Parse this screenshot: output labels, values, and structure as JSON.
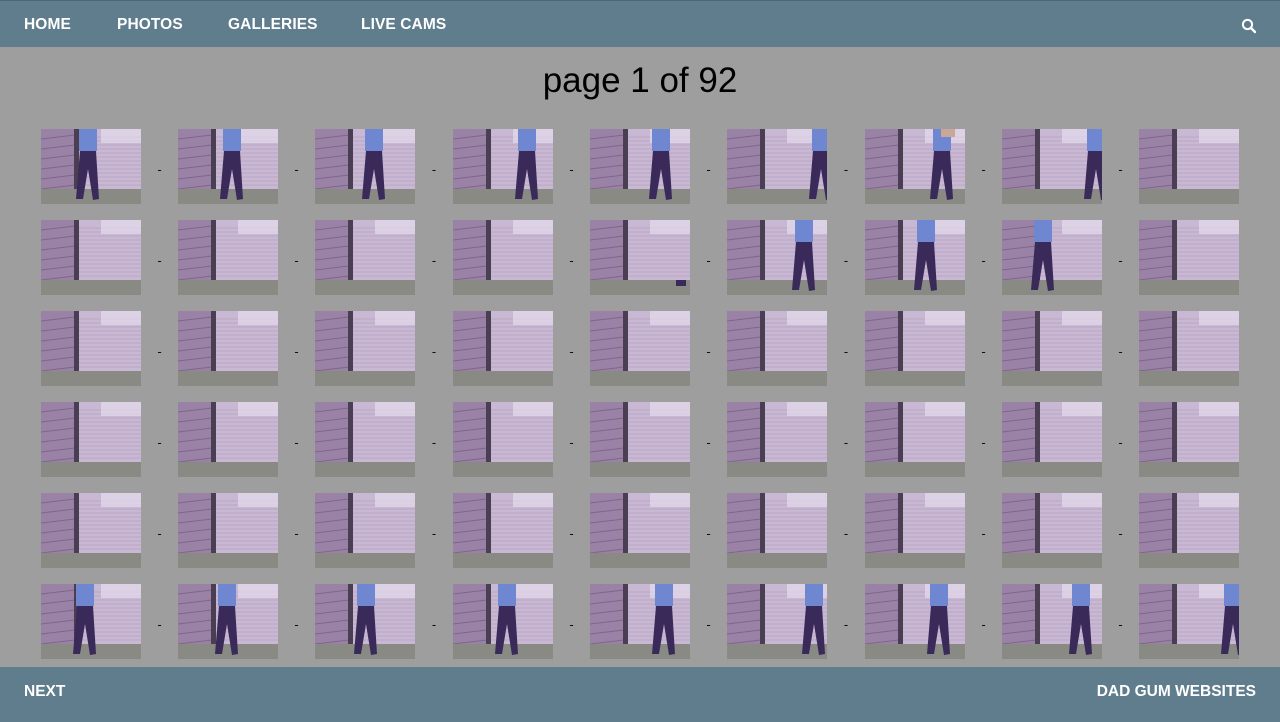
{
  "nav": {
    "items": [
      {
        "label": "HOME",
        "name": "nav-home"
      },
      {
        "label": "PHOTOS",
        "name": "nav-photos"
      },
      {
        "label": "GALLERIES",
        "name": "nav-galleries"
      },
      {
        "label": "LIVE CAMS",
        "name": "nav-live-cams"
      }
    ],
    "search_icon": "search-icon"
  },
  "page_title": "page 1 of 92",
  "gallery": {
    "separator": "-",
    "rows": [
      [
        {
          "person": "walk",
          "pos": 0.48
        },
        {
          "person": "walk",
          "pos": 0.55
        },
        {
          "person": "walk",
          "pos": 0.6
        },
        {
          "person": "walk",
          "pos": 0.75
        },
        {
          "person": "walk",
          "pos": 0.72
        },
        {
          "person": "walk",
          "pos": 0.95
        },
        {
          "person": "arm",
          "pos": 0.78
        },
        {
          "person": "walk",
          "pos": 0.95
        },
        {
          "person": "none",
          "pos": 0
        }
      ],
      [
        {
          "person": "none",
          "pos": 0
        },
        {
          "person": "none",
          "pos": 0
        },
        {
          "person": "none",
          "pos": 0
        },
        {
          "person": "none",
          "pos": 0
        },
        {
          "person": "foot",
          "pos": 0.92
        },
        {
          "person": "walk",
          "pos": 0.78
        },
        {
          "person": "walk",
          "pos": 0.62
        },
        {
          "person": "walk",
          "pos": 0.42
        },
        {
          "person": "none",
          "pos": 0
        }
      ],
      [
        {
          "person": "none",
          "pos": 0
        },
        {
          "person": "none",
          "pos": 0
        },
        {
          "person": "none",
          "pos": 0
        },
        {
          "person": "none",
          "pos": 0
        },
        {
          "person": "none",
          "pos": 0
        },
        {
          "person": "none",
          "pos": 0
        },
        {
          "person": "none",
          "pos": 0
        },
        {
          "person": "none",
          "pos": 0
        },
        {
          "person": "none",
          "pos": 0
        }
      ],
      [
        {
          "person": "none",
          "pos": 0
        },
        {
          "person": "none",
          "pos": 0
        },
        {
          "person": "none",
          "pos": 0
        },
        {
          "person": "none",
          "pos": 0
        },
        {
          "person": "none",
          "pos": 0
        },
        {
          "person": "none",
          "pos": 0
        },
        {
          "person": "none",
          "pos": 0
        },
        {
          "person": "none",
          "pos": 0
        },
        {
          "person": "none",
          "pos": 0
        }
      ],
      [
        {
          "person": "none",
          "pos": 0
        },
        {
          "person": "none",
          "pos": 0
        },
        {
          "person": "none",
          "pos": 0
        },
        {
          "person": "none",
          "pos": 0
        },
        {
          "person": "none",
          "pos": 0
        },
        {
          "person": "none",
          "pos": 0
        },
        {
          "person": "none",
          "pos": 0
        },
        {
          "person": "none",
          "pos": 0
        },
        {
          "person": "none",
          "pos": 0
        }
      ],
      [
        {
          "person": "walk",
          "pos": 0.45
        },
        {
          "person": "walk",
          "pos": 0.5
        },
        {
          "person": "walk",
          "pos": 0.52
        },
        {
          "person": "walk",
          "pos": 0.55
        },
        {
          "person": "walk",
          "pos": 0.75
        },
        {
          "person": "walk",
          "pos": 0.88
        },
        {
          "person": "walk",
          "pos": 0.75
        },
        {
          "person": "walk",
          "pos": 0.8
        },
        {
          "person": "walk",
          "pos": 0.95
        }
      ]
    ]
  },
  "footer": {
    "next_label": "NEXT",
    "brand_label": "DAD GUM WEBSITES"
  },
  "colors": {
    "bar": "#5f7d8c",
    "background": "#9e9e9e",
    "wall": "#9a82a6",
    "door": "#c9b8d3",
    "floor": "#8a8a84",
    "shirt": "#6f86d0",
    "pants": "#3a2a5a"
  }
}
